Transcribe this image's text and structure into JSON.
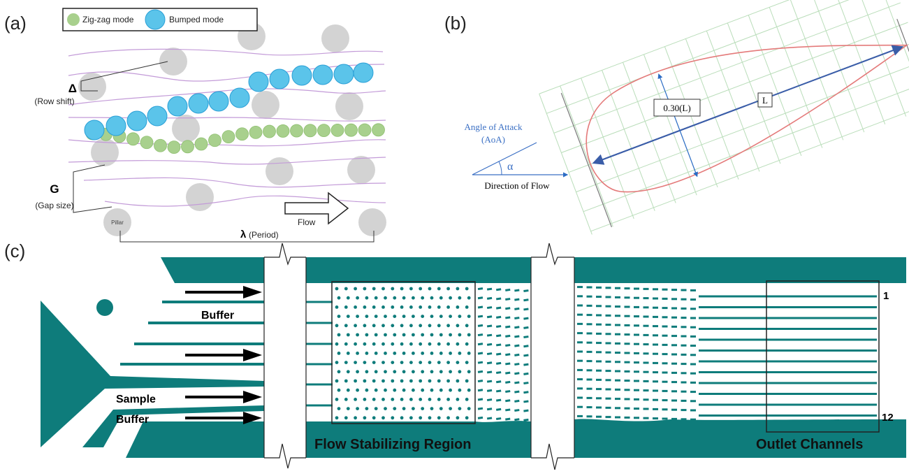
{
  "panel_a": {
    "label": "(a)",
    "legend": [
      "Zig-zag mode",
      "Bumped mode"
    ],
    "row_shift": {
      "symbol": "Δ",
      "label": "(Row shift)"
    },
    "gap": {
      "symbol": "G",
      "label": "(Gap size)"
    },
    "pillar": "Pillar",
    "flow": "Flow",
    "period": {
      "symbol": "λ",
      "label": "(Period)"
    }
  },
  "panel_b": {
    "label": "(b)",
    "angle_of_attack": [
      "Angle of Attack",
      "(AoA)"
    ],
    "alpha": "α",
    "direction": "Direction of Flow",
    "thickness": "0.30(L)",
    "chord": "L"
  },
  "panel_c": {
    "label": "(c)",
    "inlets": [
      "Buffer",
      "Sample",
      "Buffer"
    ],
    "regions": [
      "Flow Stabilizing Region",
      "Outlet Channels"
    ],
    "channel_first": "1",
    "channel_last": "12"
  }
}
